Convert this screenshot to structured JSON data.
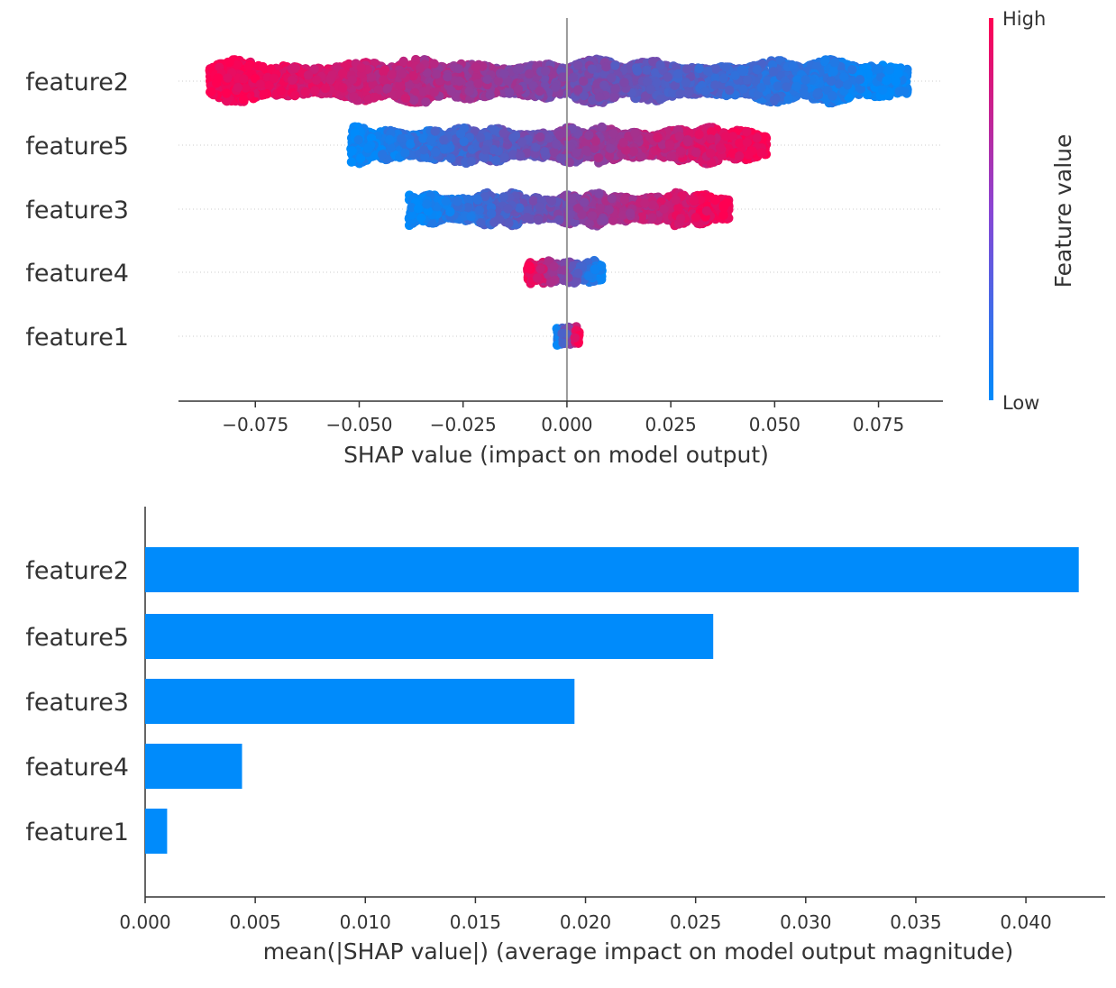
{
  "chart_data": [
    {
      "type": "scatter",
      "subtype": "beeswarm",
      "xlabel": "SHAP value (impact on model output)",
      "ylabel": "",
      "xlim": [
        -0.0935,
        0.0905
      ],
      "xticks": [
        -0.075,
        -0.05,
        -0.025,
        0.0,
        0.025,
        0.05,
        0.075
      ],
      "xtick_labels": [
        "−0.075",
        "−0.050",
        "−0.025",
        "0.000",
        "0.025",
        "0.050",
        "0.075"
      ],
      "features": [
        {
          "name": "feature2",
          "min": -0.086,
          "max": 0.082,
          "low_value_side": "positive"
        },
        {
          "name": "feature5",
          "min": -0.052,
          "max": 0.048,
          "low_value_side": "negative"
        },
        {
          "name": "feature3",
          "min": -0.038,
          "max": 0.039,
          "low_value_side": "negative"
        },
        {
          "name": "feature4",
          "min": -0.0095,
          "max": 0.0085,
          "low_value_side": "positive"
        },
        {
          "name": "feature1",
          "min": -0.0025,
          "max": 0.003,
          "low_value_side": "negative"
        }
      ],
      "colorbar": {
        "title": "Feature value",
        "high_label": "High",
        "low_label": "Low",
        "high_color": "#ff0052",
        "low_color": "#008bfb"
      },
      "grid": false
    },
    {
      "type": "bar",
      "orientation": "horizontal",
      "categories": [
        "feature2",
        "feature5",
        "feature3",
        "feature4",
        "feature1"
      ],
      "values": [
        0.0424,
        0.0258,
        0.0195,
        0.0044,
        0.001
      ],
      "xlabel": "mean(|SHAP value|) (average impact on model output magnitude)",
      "ylabel": "",
      "xlim": [
        0,
        0.0436
      ],
      "xticks": [
        0.0,
        0.005,
        0.01,
        0.015,
        0.02,
        0.025,
        0.03,
        0.035,
        0.04
      ],
      "xtick_labels": [
        "0.000",
        "0.005",
        "0.010",
        "0.015",
        "0.020",
        "0.025",
        "0.030",
        "0.035",
        "0.040"
      ],
      "bar_color": "#008bfb",
      "grid": false
    }
  ]
}
